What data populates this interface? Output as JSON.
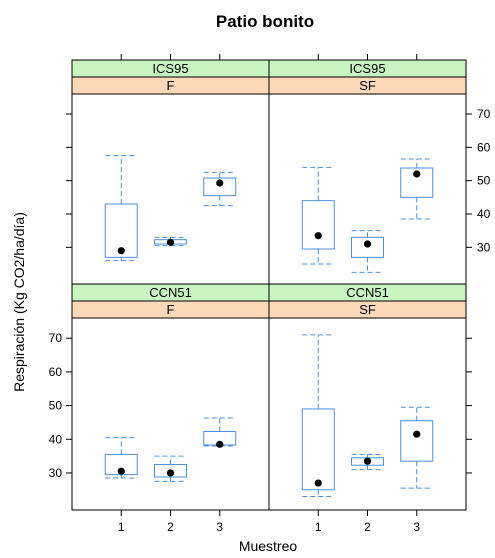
{
  "chart_data": {
    "type": "box",
    "title": "Patio bonito",
    "xlabel": "Muestreo",
    "ylabel": "Respiración (Kg CO2/ha/día)",
    "categories": [
      "1",
      "2",
      "3"
    ],
    "ylim": [
      19,
      76
    ],
    "yticks": [
      30,
      40,
      50,
      60,
      70
    ],
    "colors": {
      "box": "#4a90e2",
      "median": "#000000",
      "strip_top": "#c8f5c0",
      "strip_bottom": "#fcd9b8",
      "panel_border": "#000000"
    },
    "panels": [
      {
        "strip_top": "ICS95",
        "strip_bottom": "F",
        "boxes": [
          {
            "x": "1",
            "whisker_low": 26,
            "q1": 27,
            "median": 29,
            "q3": 43,
            "whisker_high": 57.5
          },
          {
            "x": "2",
            "whisker_low": 30.5,
            "q1": 31,
            "median": 31.5,
            "q3": 32.3,
            "whisker_high": 33
          },
          {
            "x": "3",
            "whisker_low": 42.5,
            "q1": 45.5,
            "median": 49.3,
            "q3": 50.8,
            "whisker_high": 52.5
          }
        ]
      },
      {
        "strip_top": "ICS95",
        "strip_bottom": "SF",
        "boxes": [
          {
            "x": "1",
            "whisker_low": 25,
            "q1": 29.5,
            "median": 33.5,
            "q3": 44,
            "whisker_high": 54
          },
          {
            "x": "2",
            "whisker_low": 22.5,
            "q1": 27,
            "median": 31,
            "q3": 33,
            "whisker_high": 35
          },
          {
            "x": "3",
            "whisker_low": 38.5,
            "q1": 45,
            "median": 52,
            "q3": 53.8,
            "whisker_high": 56.5
          }
        ]
      },
      {
        "strip_top": "CCN51",
        "strip_bottom": "F",
        "boxes": [
          {
            "x": "1",
            "whisker_low": 28.5,
            "q1": 29.5,
            "median": 30.5,
            "q3": 35.5,
            "whisker_high": 40.5
          },
          {
            "x": "2",
            "whisker_low": 27.5,
            "q1": 28.8,
            "median": 30,
            "q3": 32.5,
            "whisker_high": 35
          },
          {
            "x": "3",
            "whisker_low": 38,
            "q1": 38.3,
            "median": 38.5,
            "q3": 42.3,
            "whisker_high": 46.3
          }
        ]
      },
      {
        "strip_top": "CCN51",
        "strip_bottom": "SF",
        "boxes": [
          {
            "x": "1",
            "whisker_low": 23,
            "q1": 25,
            "median": 27,
            "q3": 49,
            "whisker_high": 71
          },
          {
            "x": "2",
            "whisker_low": 31,
            "q1": 32.3,
            "median": 33.5,
            "q3": 34.5,
            "whisker_high": 35.5
          },
          {
            "x": "3",
            "whisker_low": 25.5,
            "q1": 33.5,
            "median": 41.5,
            "q3": 45.5,
            "whisker_high": 49.5
          }
        ]
      }
    ]
  }
}
